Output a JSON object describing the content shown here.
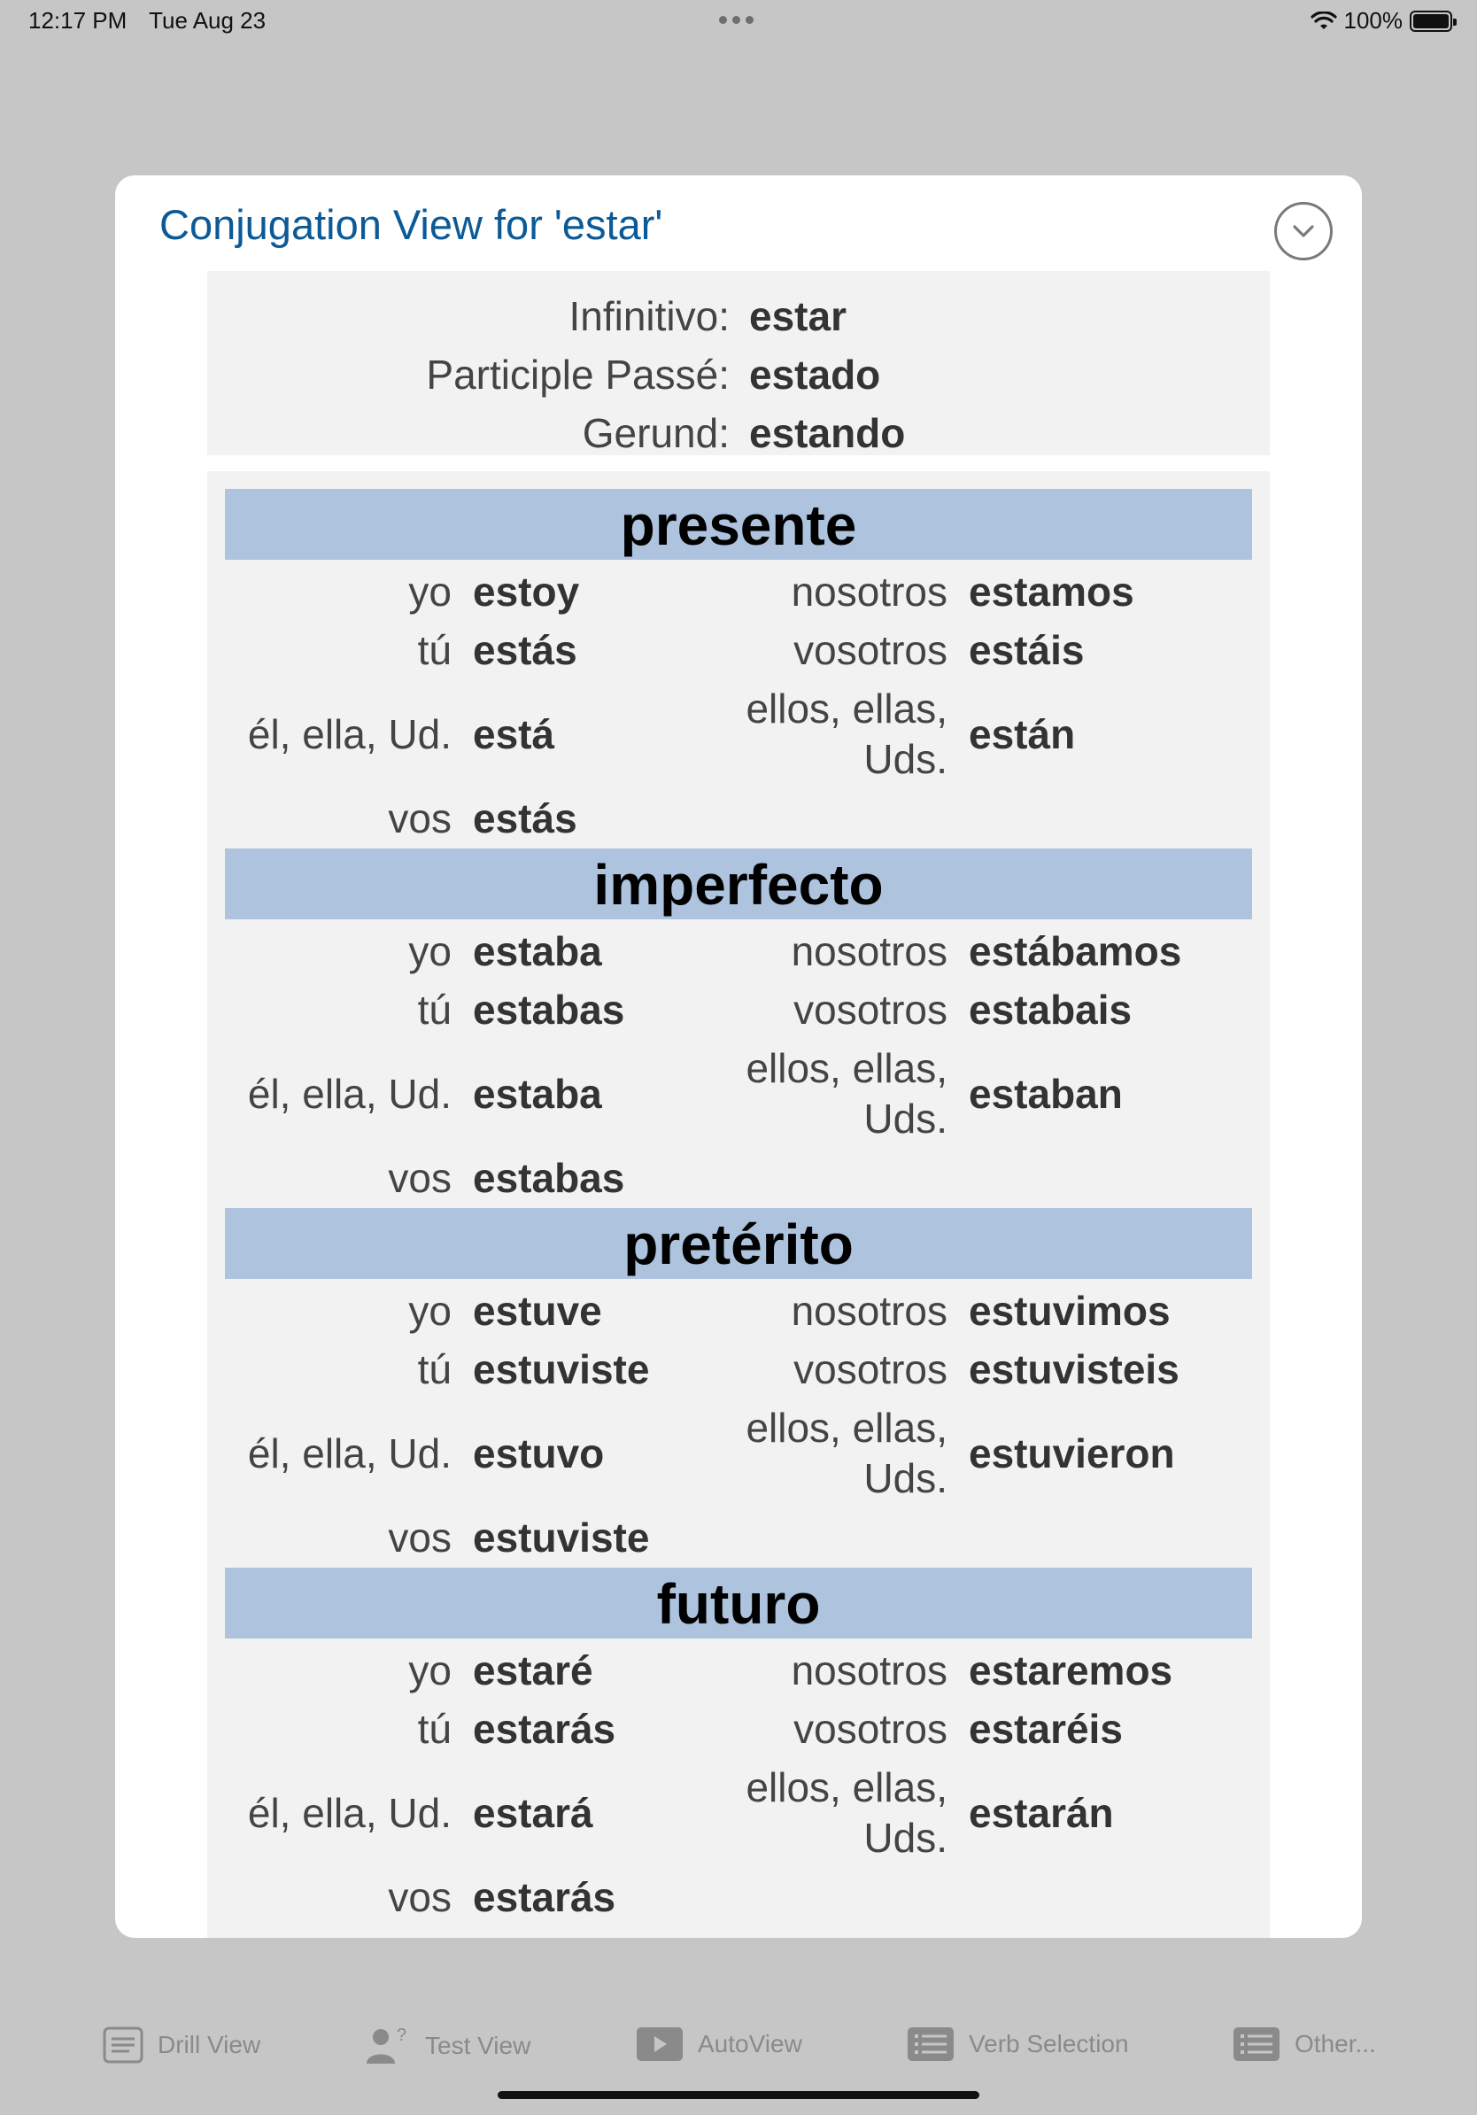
{
  "status": {
    "time": "12:17 PM",
    "date": "Tue Aug 23",
    "battery": "100%"
  },
  "modal": {
    "title": "Conjugation View for 'estar'"
  },
  "infinitive": [
    {
      "label": "Infinitivo:",
      "value": "estar"
    },
    {
      "label": "Participle Passé:",
      "value": "estado"
    },
    {
      "label": "Gerund:",
      "value": "estando"
    }
  ],
  "tenses": [
    {
      "name": "presente",
      "rows": [
        {
          "p1": "yo",
          "f1": "estoy",
          "p2": "nosotros",
          "f2": "estamos"
        },
        {
          "p1": "tú",
          "f1": "estás",
          "p2": "vosotros",
          "f2": "estáis"
        },
        {
          "p1": "él, ella, Ud.",
          "f1": "está",
          "p2": "ellos, ellas, Uds.",
          "f2": "están"
        },
        {
          "p1": "vos",
          "f1": "estás"
        }
      ]
    },
    {
      "name": "imperfecto",
      "rows": [
        {
          "p1": "yo",
          "f1": "estaba",
          "p2": "nosotros",
          "f2": "estábamos"
        },
        {
          "p1": "tú",
          "f1": "estabas",
          "p2": "vosotros",
          "f2": "estabais"
        },
        {
          "p1": "él, ella, Ud.",
          "f1": "estaba",
          "p2": "ellos, ellas, Uds.",
          "f2": "estaban"
        },
        {
          "p1": "vos",
          "f1": "estabas"
        }
      ]
    },
    {
      "name": "pretérito",
      "rows": [
        {
          "p1": "yo",
          "f1": "estuve",
          "p2": "nosotros",
          "f2": "estuvimos"
        },
        {
          "p1": "tú",
          "f1": "estuviste",
          "p2": "vosotros",
          "f2": "estuvisteis"
        },
        {
          "p1": "él, ella, Ud.",
          "f1": "estuvo",
          "p2": "ellos, ellas, Uds.",
          "f2": "estuvieron"
        },
        {
          "p1": "vos",
          "f1": "estuviste"
        }
      ]
    },
    {
      "name": "futuro",
      "rows": [
        {
          "p1": "yo",
          "f1": "estaré",
          "p2": "nosotros",
          "f2": "estaremos"
        },
        {
          "p1": "tú",
          "f1": "estarás",
          "p2": "vosotros",
          "f2": "estaréis"
        },
        {
          "p1": "él, ella, Ud.",
          "f1": "estará",
          "p2": "ellos, ellas, Uds.",
          "f2": "estarán"
        },
        {
          "p1": "vos",
          "f1": "estarás"
        }
      ]
    }
  ],
  "tabs": [
    {
      "label": "Drill View",
      "icon": "drill-view-icon"
    },
    {
      "label": "Test View",
      "icon": "test-view-icon"
    },
    {
      "label": "AutoView",
      "icon": "autoview-icon"
    },
    {
      "label": "Verb Selection",
      "icon": "verb-selection-icon"
    },
    {
      "label": "Other...",
      "icon": "other-icon"
    }
  ],
  "colors": {
    "title": "#0b5a97",
    "tense_header": "#adc3de",
    "panel": "#f2f2f2",
    "backdrop": "#c6c6c6"
  }
}
